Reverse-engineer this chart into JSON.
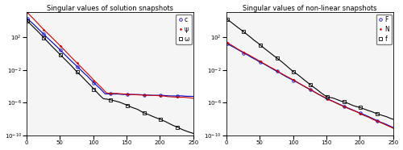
{
  "title_left": "Singular values of solution snapshots",
  "title_right": "Singular values of non-linear snapshots",
  "legend_left": [
    [
      "c",
      "#0000cc",
      "o"
    ],
    [
      "ψ",
      "#cc0000",
      "."
    ],
    [
      "ω",
      "#000000",
      "s"
    ]
  ],
  "legend_right": [
    [
      "F",
      "#0000cc",
      "o"
    ],
    [
      "N",
      "#cc0000",
      "."
    ],
    [
      "f",
      "#000000",
      "s"
    ]
  ],
  "xlim": [
    0,
    250
  ],
  "ylim_log": [
    -10,
    5
  ],
  "n_points": 250,
  "background": "#f5f5f5",
  "marker_every": 25,
  "linewidth": 0.8,
  "markersize": 2.5
}
